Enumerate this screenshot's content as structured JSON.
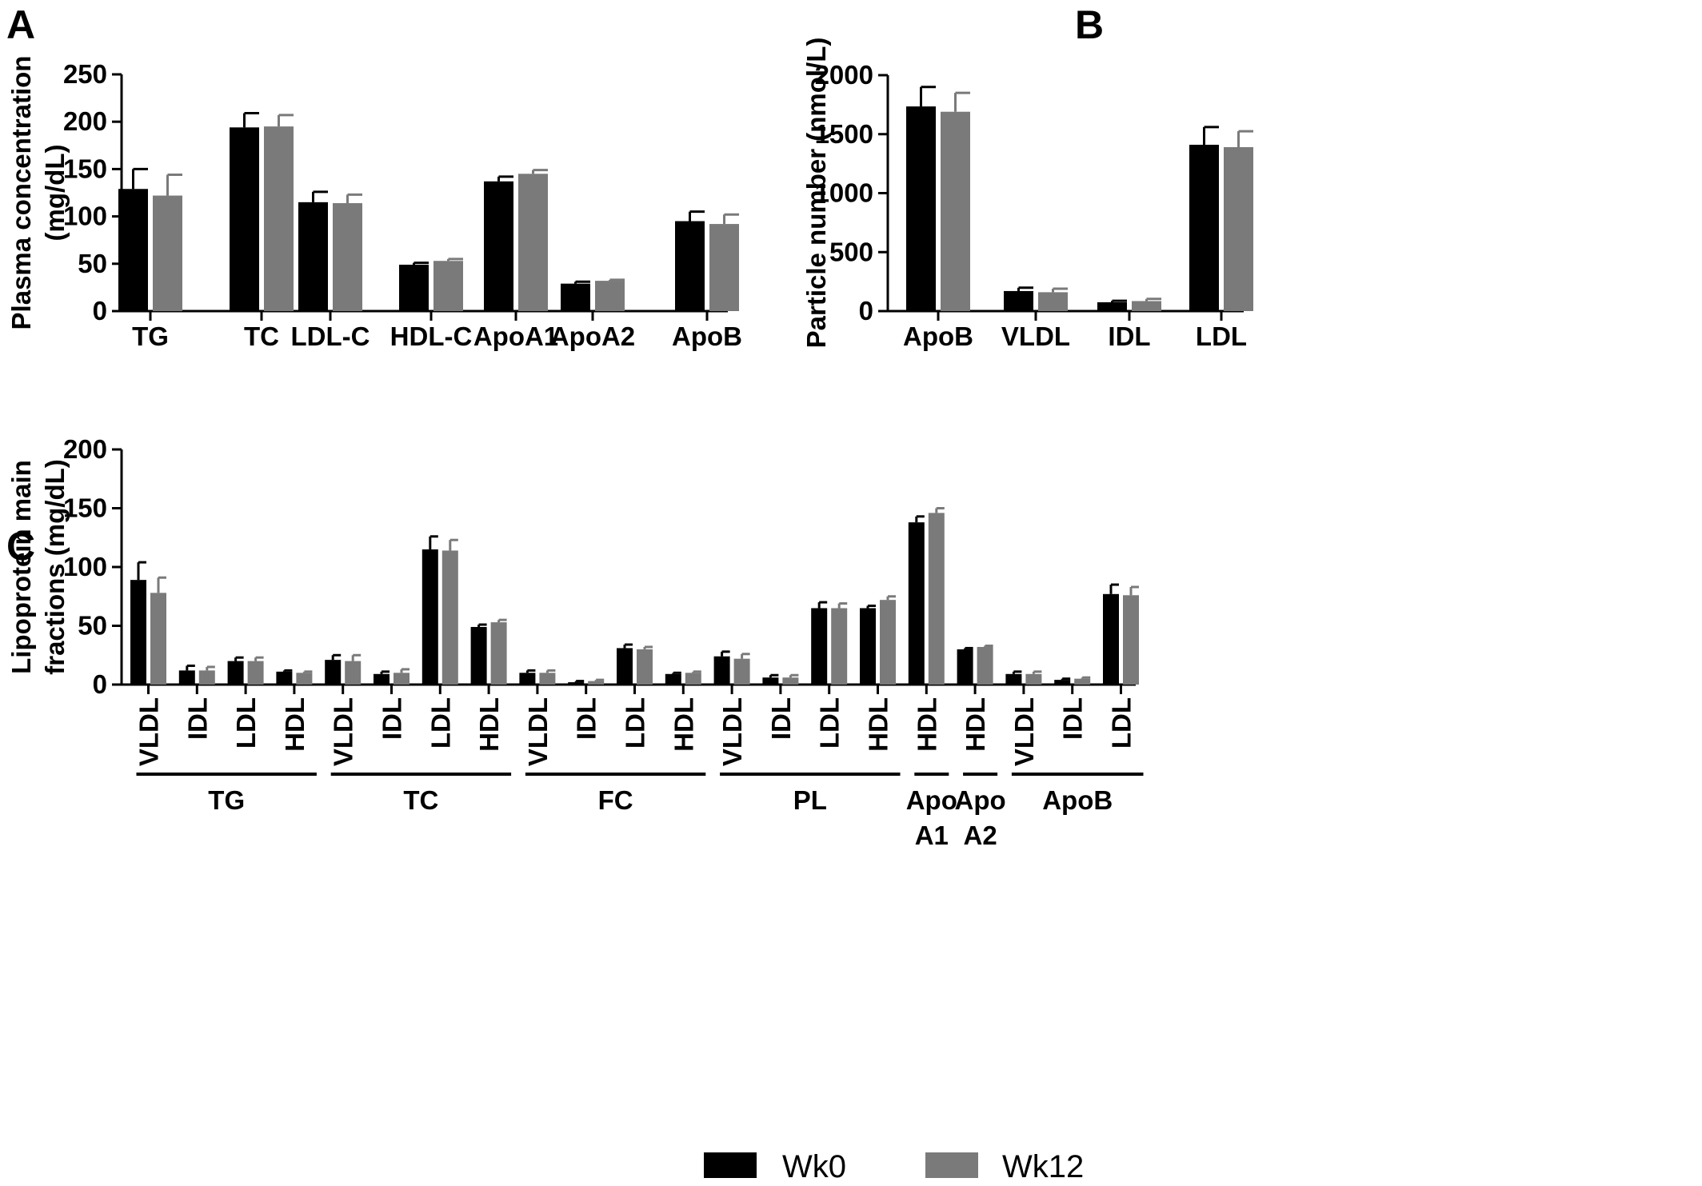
{
  "legend": [
    {
      "name": "Wk0",
      "color": "#000000"
    },
    {
      "name": "Wk12",
      "color": "#7a7a7a"
    }
  ],
  "chart_data": [
    {
      "panel": "A",
      "type": "bar",
      "ylabel_lines": [
        "Plasma concentration",
        "(mg/dL)"
      ],
      "ylim": [
        0,
        250
      ],
      "yticks": [
        "0",
        "50",
        "100",
        "150",
        "200",
        "250"
      ],
      "categories": [
        "TG",
        "TC",
        "LDL-C",
        "HDL-C",
        "ApoA1",
        "ApoA2",
        "ApoB"
      ],
      "series": [
        {
          "name": "Wk0",
          "values": [
            129,
            194,
            115,
            49,
            137,
            29,
            95
          ],
          "errors": [
            21,
            15,
            11,
            2,
            5,
            2,
            10
          ]
        },
        {
          "name": "Wk12",
          "values": [
            122,
            195,
            114,
            53,
            145,
            32,
            92
          ],
          "errors": [
            22,
            12,
            9,
            2,
            4,
            1,
            10
          ]
        }
      ]
    },
    {
      "panel": "B",
      "type": "bar",
      "ylabel_lines": [
        "Particle number (nmol/L)"
      ],
      "ylim": [
        0,
        2000
      ],
      "yticks": [
        "0",
        "500",
        "1000",
        "1500",
        "2000"
      ],
      "categories": [
        "ApoB",
        "VLDL",
        "IDL",
        "LDL"
      ],
      "series": [
        {
          "name": "Wk0",
          "values": [
            1735,
            170,
            75,
            1410
          ],
          "errors": [
            165,
            28,
            12,
            150
          ]
        },
        {
          "name": "Wk12",
          "values": [
            1690,
            160,
            85,
            1390
          ],
          "errors": [
            160,
            30,
            18,
            135
          ]
        }
      ]
    },
    {
      "panel": "C",
      "type": "bar",
      "ylabel_lines": [
        "Lipoprotein main",
        "fractions (mg/dL)"
      ],
      "ylim": [
        0,
        200
      ],
      "yticks": [
        "0",
        "50",
        "100",
        "150",
        "200"
      ],
      "categories": [
        "VLDL",
        "IDL",
        "LDL",
        "HDL",
        "VLDL",
        "IDL",
        "LDL",
        "HDL",
        "VLDL",
        "IDL",
        "LDL",
        "HDL",
        "VLDL",
        "IDL",
        "LDL",
        "HDL",
        "HDL",
        "HDL",
        "VLDL",
        "IDL",
        "LDL"
      ],
      "groups": [
        {
          "label_lines": [
            "TG"
          ],
          "start": 0,
          "end": 3
        },
        {
          "label_lines": [
            "TC"
          ],
          "start": 4,
          "end": 7
        },
        {
          "label_lines": [
            "FC"
          ],
          "start": 8,
          "end": 11
        },
        {
          "label_lines": [
            "PL"
          ],
          "start": 12,
          "end": 15
        },
        {
          "label_lines": [
            "Apo",
            "A1"
          ],
          "start": 16,
          "end": 16
        },
        {
          "label_lines": [
            "Apo",
            "A2"
          ],
          "start": 17,
          "end": 17
        },
        {
          "label_lines": [
            "ApoB"
          ],
          "start": 18,
          "end": 20
        }
      ],
      "series": [
        {
          "name": "Wk0",
          "values": [
            89,
            12,
            20,
            11,
            21,
            9,
            115,
            49,
            10,
            2,
            31,
            9,
            24,
            6,
            65,
            65,
            138,
            30,
            9,
            4,
            77
          ],
          "errors": [
            15,
            4,
            3,
            1,
            4,
            2,
            11,
            2,
            2,
            1,
            3,
            1,
            4,
            2,
            5,
            2,
            5,
            1,
            2,
            1,
            8
          ]
        },
        {
          "name": "Wk12",
          "values": [
            78,
            12,
            20,
            10,
            20,
            10,
            114,
            53,
            10,
            3,
            30,
            10,
            22,
            6,
            65,
            72,
            146,
            32,
            9,
            5,
            76
          ],
          "errors": [
            13,
            3,
            3,
            1,
            5,
            3,
            9,
            2,
            2,
            1,
            2,
            1,
            4,
            2,
            4,
            3,
            4,
            1,
            2,
            1,
            7
          ]
        }
      ]
    }
  ]
}
